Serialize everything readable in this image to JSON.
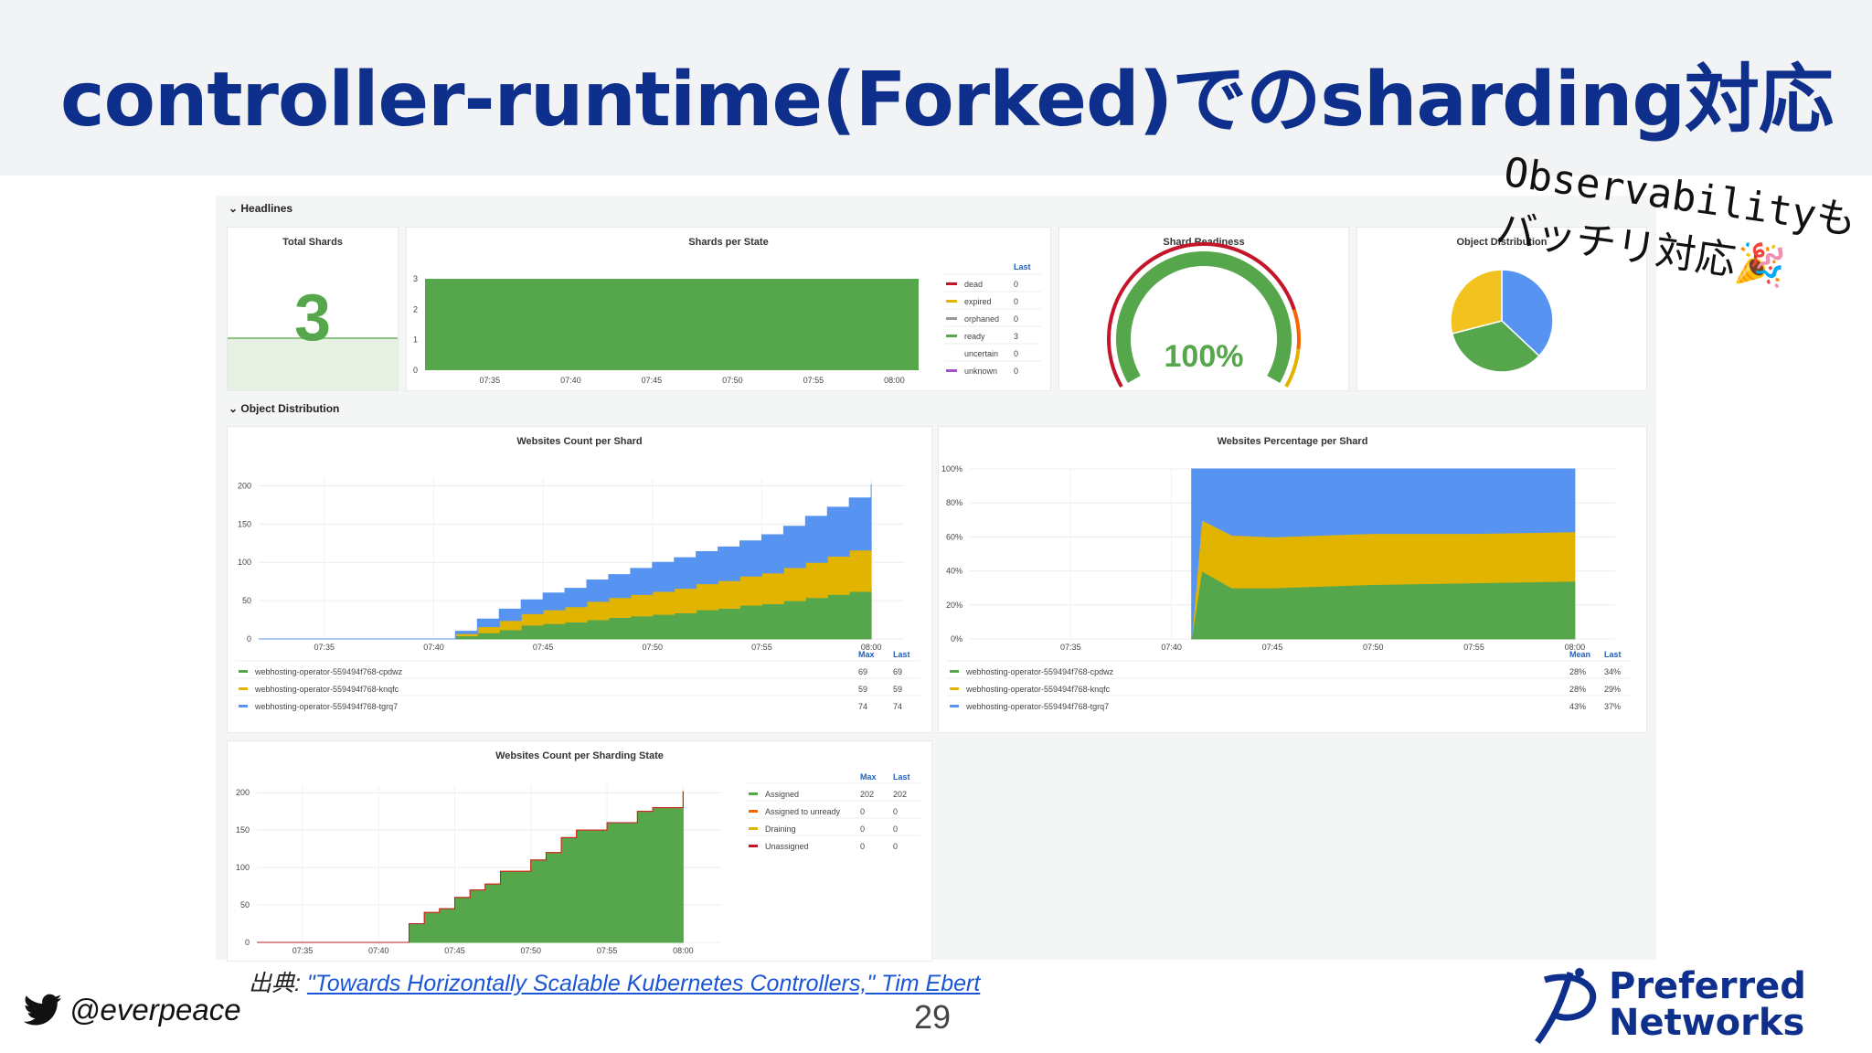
{
  "slide": {
    "title": "controller-runtime(Forked)でのsharding対応",
    "page_number": "29",
    "twitter_handle": "@everpeace",
    "source_prefix": "出典: ",
    "source_link_text": "\"Towards Horizontally Scalable Kubernetes Controllers,\" Tim Ebert",
    "note_lines": [
      "Observabilityも",
      "バッチリ対応🎉"
    ],
    "logo_line1": "Preferred",
    "logo_line2": "Networks"
  },
  "colors": {
    "title": "#0f2f8c",
    "green": "#56a64b",
    "yellow": "#e0b400",
    "blue": "#5794f2",
    "red": "#c4162a",
    "orange": "#fa6400",
    "grey": "#999999",
    "purple": "#a352cc",
    "link": "#1a55d6"
  },
  "dashboard": {
    "section_headlines": "Headlines",
    "section_object_distribution": "Object Distribution",
    "total_shards": {
      "title": "Total Shards",
      "value": "3"
    },
    "shards_per_state": {
      "title": "Shards per State",
      "legend_header": "Last",
      "y_ticks": [
        "0",
        "1",
        "2",
        "3"
      ],
      "x_ticks": [
        "07:35",
        "07:40",
        "07:45",
        "07:50",
        "07:55",
        "08:00"
      ],
      "legend": [
        {
          "name": "dead",
          "last": "0",
          "color": "#c4162a"
        },
        {
          "name": "expired",
          "last": "0",
          "color": "#e0b400"
        },
        {
          "name": "orphaned",
          "last": "0",
          "color": "#999999"
        },
        {
          "name": "ready",
          "last": "3",
          "color": "#56a64b"
        },
        {
          "name": "uncertain",
          "last": "0",
          "color": "#ffffff"
        },
        {
          "name": "unknown",
          "last": "0",
          "color": "#a352cc"
        }
      ]
    },
    "shard_readiness": {
      "title": "Shard Readiness",
      "value": "100%",
      "fraction": 1.0
    },
    "object_distribution": {
      "title": "Object Distribution",
      "slices": [
        {
          "value": 37,
          "color": "#5794f2"
        },
        {
          "value": 34,
          "color": "#56a64b"
        },
        {
          "value": 29,
          "color": "#f2c21e"
        }
      ]
    },
    "count_per_shard": {
      "title": "Websites Count per Shard",
      "y_ticks": [
        "0",
        "50",
        "100",
        "150",
        "200"
      ],
      "x_ticks": [
        "07:35",
        "07:40",
        "07:45",
        "07:50",
        "07:55",
        "08:00"
      ],
      "col_headers": [
        "Max",
        "Last"
      ],
      "legend": [
        {
          "name": "webhosting-operator-559494f768-cpdwz",
          "max": "69",
          "last": "69",
          "color": "#56a64b"
        },
        {
          "name": "webhosting-operator-559494f768-knqfc",
          "max": "59",
          "last": "59",
          "color": "#e0b400"
        },
        {
          "name": "webhosting-operator-559494f768-tgrq7",
          "max": "74",
          "last": "74",
          "color": "#5794f2"
        }
      ]
    },
    "percentage_per_shard": {
      "title": "Websites Percentage per Shard",
      "y_ticks": [
        "0%",
        "20%",
        "40%",
        "60%",
        "80%",
        "100%"
      ],
      "x_ticks": [
        "07:35",
        "07:40",
        "07:45",
        "07:50",
        "07:55",
        "08:00"
      ],
      "col_headers": [
        "Mean",
        "Last"
      ],
      "legend": [
        {
          "name": "webhosting-operator-559494f768-cpdwz",
          "mean": "28%",
          "last": "34%",
          "color": "#56a64b"
        },
        {
          "name": "webhosting-operator-559494f768-knqfc",
          "mean": "28%",
          "last": "29%",
          "color": "#e0b400"
        },
        {
          "name": "webhosting-operator-559494f768-tgrq7",
          "mean": "43%",
          "last": "37%",
          "color": "#5794f2"
        }
      ]
    },
    "count_per_state": {
      "title": "Websites Count per Sharding State",
      "y_ticks": [
        "0",
        "50",
        "100",
        "150",
        "200"
      ],
      "x_ticks": [
        "07:35",
        "07:40",
        "07:45",
        "07:50",
        "07:55",
        "08:00"
      ],
      "col_headers": [
        "Max",
        "Last"
      ],
      "legend": [
        {
          "name": "Assigned",
          "max": "202",
          "last": "202",
          "color": "#56a64b"
        },
        {
          "name": "Assigned to unready",
          "max": "0",
          "last": "0",
          "color": "#fa6400"
        },
        {
          "name": "Draining",
          "max": "0",
          "last": "0",
          "color": "#e0b400"
        },
        {
          "name": "Unassigned",
          "max": "0",
          "last": "0",
          "color": "#c4162a"
        }
      ]
    }
  },
  "chart_data": [
    {
      "type": "area",
      "title": "Websites Count per Shard",
      "x": [
        "07:32",
        "07:40",
        "07:41",
        "07:42",
        "07:43",
        "07:44",
        "07:45",
        "07:46",
        "07:47",
        "07:48",
        "07:49",
        "07:50",
        "07:51",
        "07:52",
        "07:53",
        "07:54",
        "07:55",
        "07:56",
        "07:57",
        "07:58",
        "07:59",
        "08:00"
      ],
      "series": [
        {
          "name": "webhosting-operator-559494f768-cpdwz",
          "values": [
            0,
            0,
            4,
            8,
            12,
            18,
            20,
            22,
            25,
            28,
            30,
            32,
            34,
            38,
            40,
            44,
            46,
            50,
            54,
            58,
            62,
            69
          ]
        },
        {
          "name": "webhosting-operator-559494f768-knqfc",
          "values": [
            0,
            0,
            3,
            8,
            12,
            15,
            18,
            20,
            24,
            26,
            28,
            30,
            32,
            34,
            36,
            38,
            40,
            43,
            46,
            50,
            54,
            59
          ]
        },
        {
          "name": "webhosting-operator-559494f768-tgrq7",
          "values": [
            0,
            0,
            3,
            10,
            15,
            18,
            22,
            24,
            28,
            30,
            34,
            38,
            40,
            42,
            44,
            46,
            50,
            54,
            60,
            64,
            68,
            74
          ]
        }
      ],
      "ylim": [
        0,
        210
      ]
    },
    {
      "type": "area",
      "title": "Websites Percentage per Shard",
      "x": [
        "07:41",
        "07:41.5",
        "07:43",
        "07:45",
        "07:50",
        "07:55",
        "08:00"
      ],
      "series": [
        {
          "name": "webhosting-operator-559494f768-cpdwz",
          "values": [
            0,
            40,
            30,
            30,
            32,
            33,
            34
          ]
        },
        {
          "name": "webhosting-operator-559494f768-knqfc",
          "values": [
            0,
            30,
            31,
            30,
            30,
            29,
            29
          ]
        },
        {
          "name": "webhosting-operator-559494f768-tgrq7",
          "values": [
            100,
            30,
            39,
            40,
            38,
            38,
            37
          ]
        }
      ],
      "ylim": [
        0,
        100
      ]
    },
    {
      "type": "area",
      "title": "Websites Count per Sharding State",
      "x": [
        "07:32",
        "07:41",
        "07:42",
        "07:43",
        "07:44",
        "07:45",
        "07:46",
        "07:47",
        "07:48",
        "07:49",
        "07:50",
        "07:51",
        "07:52",
        "07:53",
        "07:54",
        "07:55",
        "07:56",
        "07:57",
        "07:58",
        "07:59",
        "08:00"
      ],
      "series": [
        {
          "name": "Assigned",
          "values": [
            0,
            0,
            25,
            40,
            45,
            60,
            70,
            78,
            95,
            95,
            110,
            120,
            140,
            150,
            150,
            160,
            160,
            175,
            180,
            180,
            202
          ]
        },
        {
          "name": "Assigned to unready",
          "values": [
            0,
            0,
            0,
            0,
            0,
            0,
            0,
            0,
            0,
            0,
            0,
            0,
            0,
            0,
            0,
            0,
            0,
            0,
            0,
            0,
            0
          ]
        },
        {
          "name": "Draining",
          "values": [
            0,
            0,
            0,
            0,
            0,
            0,
            0,
            0,
            0,
            0,
            0,
            0,
            0,
            0,
            0,
            0,
            0,
            0,
            0,
            0,
            0
          ]
        },
        {
          "name": "Unassigned",
          "values": [
            0,
            0,
            0,
            0,
            0,
            0,
            0,
            0,
            0,
            0,
            0,
            0,
            0,
            0,
            0,
            0,
            0,
            0,
            0,
            0,
            0
          ]
        }
      ],
      "ylim": [
        0,
        210
      ]
    },
    {
      "type": "bar",
      "title": "Shards per State",
      "categories": [
        "ready"
      ],
      "values": [
        3
      ],
      "ylim": [
        0,
        3
      ]
    },
    {
      "type": "pie",
      "title": "Object Distribution",
      "categories": [
        "webhosting-operator-559494f768-tgrq7",
        "webhosting-operator-559494f768-cpdwz",
        "webhosting-operator-559494f768-knqfc"
      ],
      "values": [
        37,
        34,
        29
      ]
    }
  ]
}
